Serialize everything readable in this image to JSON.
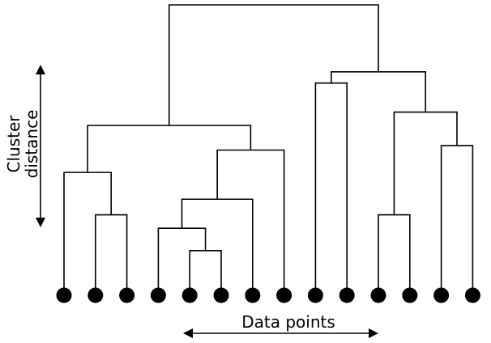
{
  "diagram": {
    "type": "dendrogram",
    "y_axis_label_lines": [
      "Cluster",
      "distance"
    ],
    "x_axis_label": "Data points",
    "point_count": 14,
    "merges": [
      {
        "id": "m1",
        "left": "p2",
        "right": "p3",
        "height": 0.36
      },
      {
        "id": "m2",
        "left": "p1",
        "right": "m1",
        "height": 0.55
      },
      {
        "id": "m3",
        "left": "p5",
        "right": "p6",
        "height": 0.2
      },
      {
        "id": "m4",
        "left": "p4",
        "right": "m3",
        "height": 0.3
      },
      {
        "id": "m5",
        "left": "m4",
        "right": "p7",
        "height": 0.43
      },
      {
        "id": "m6",
        "left": "m5",
        "right": "p8",
        "height": 0.65
      },
      {
        "id": "m7",
        "left": "m2",
        "right": "m6",
        "height": 0.76
      },
      {
        "id": "m8",
        "left": "p9",
        "right": "p10",
        "height": 0.95
      },
      {
        "id": "m9",
        "left": "p11",
        "right": "p12",
        "height": 0.36
      },
      {
        "id": "m10",
        "left": "p13",
        "right": "p14",
        "height": 0.67
      },
      {
        "id": "m11",
        "left": "m9",
        "right": "m10",
        "height": 0.82
      },
      {
        "id": "m12",
        "left": "m8",
        "right": "m11",
        "height": 1.0
      },
      {
        "id": "m13",
        "left": "m7",
        "right": "m12",
        "height": 1.3
      }
    ],
    "colors": {
      "line": "#000000",
      "point": "#000000",
      "background": "#ffffff"
    }
  }
}
